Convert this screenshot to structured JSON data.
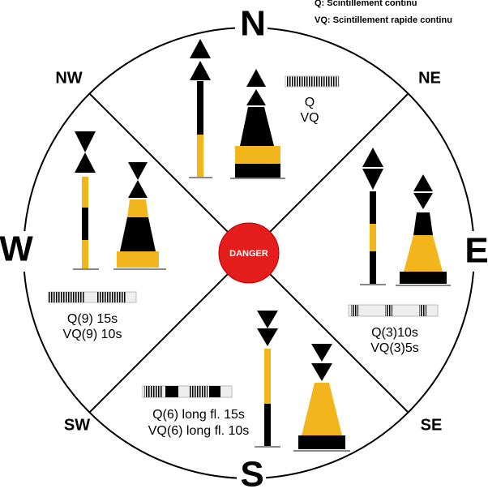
{
  "legend": {
    "q": "Q: Scintillement continu",
    "vq": "VQ: Scintillement rapide continu"
  },
  "compass": {
    "n": "N",
    "e": "E",
    "s": "S",
    "w": "W",
    "nw": "NW",
    "ne": "NE",
    "se": "SE",
    "sw": "SW"
  },
  "center": "DANGER",
  "north": {
    "q": "Q",
    "vq": "VQ"
  },
  "west": {
    "q": "Q(9) 15s",
    "vq": "VQ(9) 10s"
  },
  "east": {
    "q": "Q(3)10s",
    "vq": "VQ(3)5s"
  },
  "south": {
    "q": "Q(6) long fl. 15s",
    "vq": "VQ(6) long fl. 10s"
  }
}
